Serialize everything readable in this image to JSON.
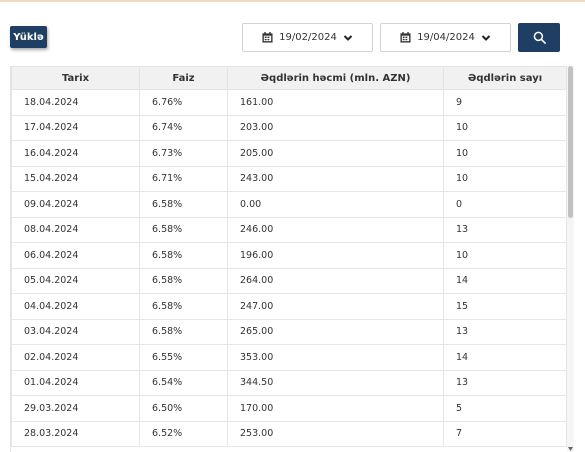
{
  "toolbar": {
    "load_label": "Yüklə",
    "date_from": "19/02/2024",
    "date_to": "19/04/2024",
    "accent_color": "#1f3e63"
  },
  "table": {
    "headers": [
      "Tarix",
      "Faiz",
      "Əqdlərin həcmi (mln. AZN)",
      "Əqdlərin sayı"
    ],
    "rows": [
      [
        "18.04.2024",
        "6.76%",
        "161.00",
        "9"
      ],
      [
        "17.04.2024",
        "6.74%",
        "203.00",
        "10"
      ],
      [
        "16.04.2024",
        "6.73%",
        "205.00",
        "10"
      ],
      [
        "15.04.2024",
        "6.71%",
        "243.00",
        "10"
      ],
      [
        "09.04.2024",
        "6.58%",
        "0.00",
        "0"
      ],
      [
        "08.04.2024",
        "6.58%",
        "246.00",
        "13"
      ],
      [
        "06.04.2024",
        "6.58%",
        "196.00",
        "10"
      ],
      [
        "05.04.2024",
        "6.58%",
        "264.00",
        "14"
      ],
      [
        "04.04.2024",
        "6.58%",
        "247.00",
        "15"
      ],
      [
        "03.04.2024",
        "6.58%",
        "265.00",
        "13"
      ],
      [
        "02.04.2024",
        "6.55%",
        "353.00",
        "14"
      ],
      [
        "01.04.2024",
        "6.54%",
        "344.50",
        "13"
      ],
      [
        "29.03.2024",
        "6.50%",
        "170.00",
        "5"
      ],
      [
        "28.03.2024",
        "6.52%",
        "253.00",
        "7"
      ]
    ]
  },
  "icons": {
    "date_from_icon": "calendar-icon",
    "date_to_icon": "calendar-icon",
    "dropdown_icon": "chevron-down-icon",
    "search_icon": "search-icon"
  }
}
